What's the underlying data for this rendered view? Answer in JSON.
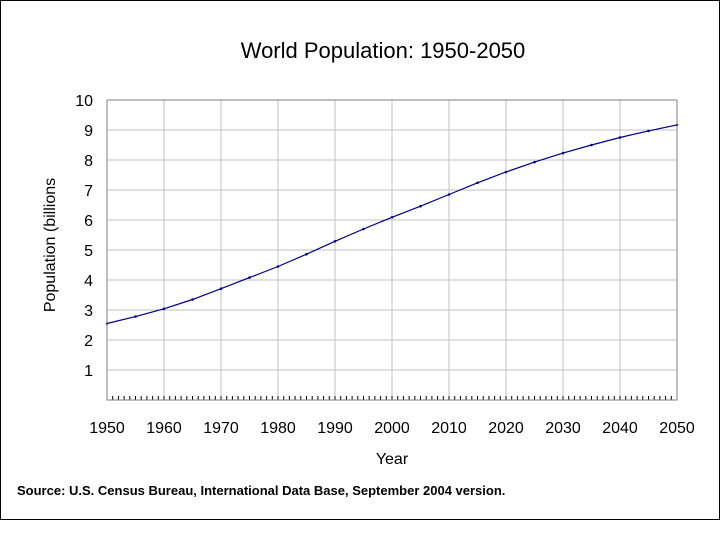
{
  "chart_data": {
    "type": "line",
    "title": "World Population: 1950-2050",
    "xlabel": "Year",
    "ylabel": "Population (billions",
    "source": "Source: U.S. Census Bureau, International Data Base, September 2004 version.",
    "xlim": [
      1950,
      2050
    ],
    "ylim": [
      0,
      10
    ],
    "x_ticks": [
      "1950",
      "1960",
      "1970",
      "1980",
      "1990",
      "2000",
      "2010",
      "2020",
      "2030",
      "2040",
      "2050"
    ],
    "y_ticks": [
      "1",
      "2",
      "3",
      "4",
      "5",
      "6",
      "7",
      "8",
      "9",
      "10"
    ],
    "grid": true,
    "series_color": "#000080",
    "series": [
      {
        "name": "World Population",
        "x": [
          1950,
          1955,
          1960,
          1965,
          1970,
          1975,
          1980,
          1985,
          1990,
          1995,
          2000,
          2005,
          2010,
          2015,
          2020,
          2025,
          2030,
          2035,
          2040,
          2045,
          2050
        ],
        "values": [
          2.55,
          2.78,
          3.04,
          3.35,
          3.71,
          4.08,
          4.45,
          4.86,
          5.29,
          5.7,
          6.09,
          6.46,
          6.85,
          7.24,
          7.6,
          7.93,
          8.23,
          8.5,
          8.75,
          8.97,
          9.17
        ]
      }
    ]
  }
}
